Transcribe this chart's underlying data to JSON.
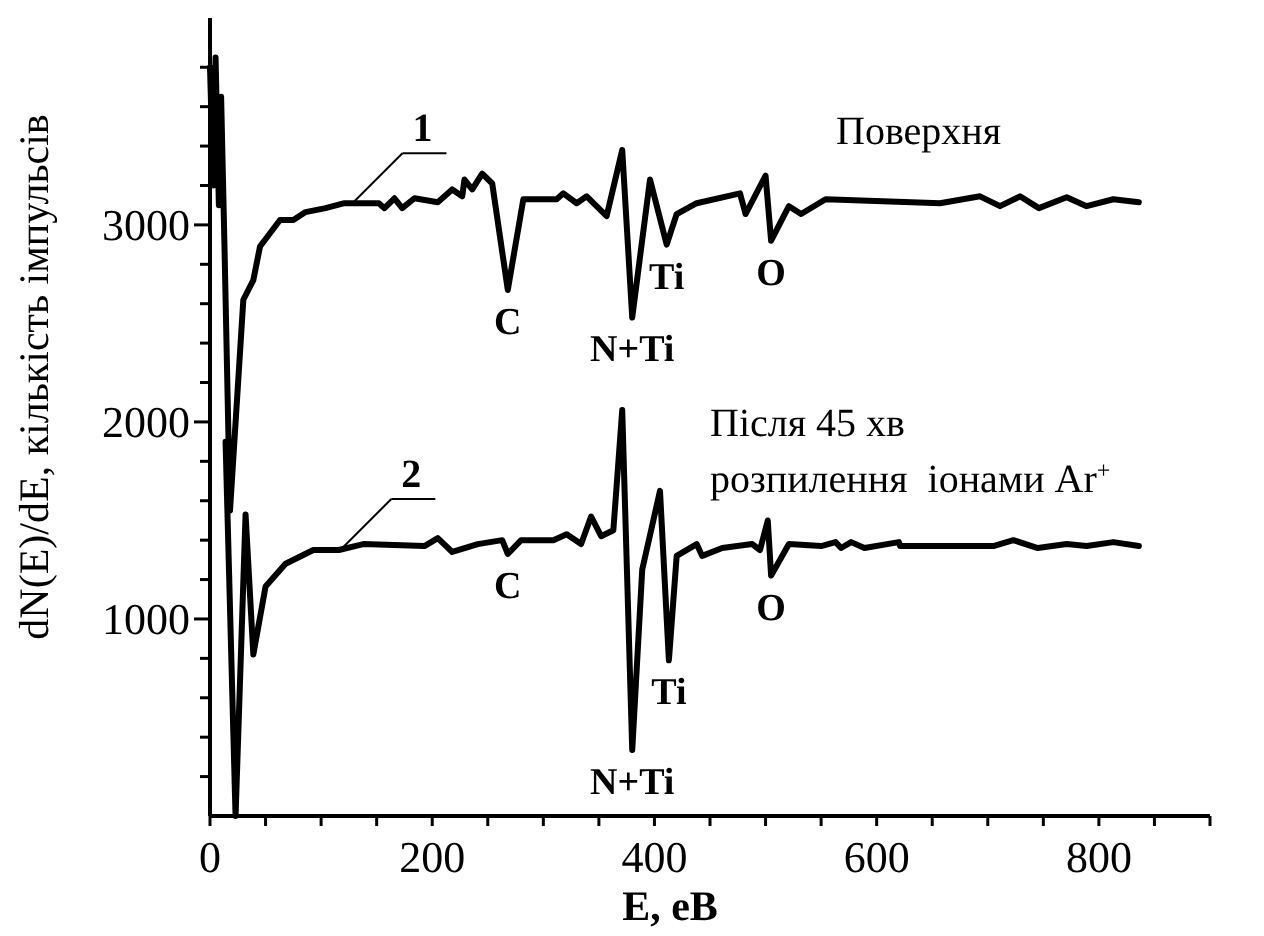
{
  "chart_data": {
    "type": "line",
    "xlabel": "E, еВ",
    "ylabel": "dN(E)/dE, кількість імпульсів",
    "xlim": [
      0,
      900
    ],
    "xticks": [
      0,
      {
        "value": 50,
        "label": null
      },
      {
        "value": 100,
        "label": null
      },
      {
        "value": 150,
        "label": null
      },
      200,
      {
        "value": 250,
        "label": null
      },
      {
        "value": 300,
        "label": null
      },
      {
        "value": 350,
        "label": null
      },
      400,
      {
        "value": 450,
        "label": null
      },
      {
        "value": 500,
        "label": null
      },
      {
        "value": 550,
        "label": null
      },
      600,
      {
        "value": 650,
        "label": null
      },
      {
        "value": 700,
        "label": null
      },
      {
        "value": 750,
        "label": null
      },
      800,
      {
        "value": 850,
        "label": null
      },
      {
        "value": 900,
        "label": null
      }
    ],
    "ylim": [
      0,
      4050
    ],
    "yticks": [
      {
        "value": 200,
        "label": null
      },
      {
        "value": 400,
        "label": null
      },
      {
        "value": 600,
        "label": null
      },
      {
        "value": 800,
        "label": null
      },
      1000,
      {
        "value": 1200,
        "label": null
      },
      {
        "value": 1400,
        "label": null
      },
      {
        "value": 1600,
        "label": null
      },
      {
        "value": 1800,
        "label": null
      },
      2000,
      {
        "value": 2200,
        "label": null
      },
      {
        "value": 2400,
        "label": null
      },
      {
        "value": 2600,
        "label": null
      },
      {
        "value": 2800,
        "label": null
      },
      3000,
      {
        "value": 3200,
        "label": null
      },
      {
        "value": 3400,
        "label": null
      },
      {
        "value": 3600,
        "label": null
      },
      {
        "value": 3800,
        "label": null
      }
    ],
    "grid": false,
    "marker": "none",
    "line_style": "solid",
    "series": [
      {
        "color": "#000000",
        "x": [
          0,
          3,
          5,
          8,
          10,
          13,
          18,
          30,
          39,
          45,
          63,
          75,
          86,
          104,
          121,
          152,
          157,
          166,
          173,
          184,
          205,
          218,
          227,
          229,
          236,
          245,
          254,
          268,
          282,
          312,
          318,
          330,
          339,
          357,
          371,
          380,
          396,
          411,
          420,
          438,
          477,
          482,
          500,
          505,
          521,
          532,
          554,
          657,
          693,
          711,
          729,
          746,
          771,
          789,
          813,
          836
        ],
        "values": [
          3800,
          3200,
          3850,
          3100,
          3650,
          2900,
          1550,
          2620,
          2720,
          2890,
          3025,
          3025,
          3065,
          3085,
          3110,
          3110,
          3085,
          3135,
          3085,
          3135,
          3115,
          3180,
          3145,
          3230,
          3180,
          3260,
          3210,
          2670,
          3130,
          3130,
          3160,
          3110,
          3145,
          3045,
          3380,
          2530,
          3230,
          2900,
          3055,
          3110,
          3160,
          3055,
          3250,
          2920,
          3095,
          3055,
          3130,
          3110,
          3145,
          3095,
          3145,
          3085,
          3140,
          3095,
          3130,
          3115
        ]
      },
      {
        "color": "#000000",
        "x": [
          14,
          23,
          32,
          39,
          50,
          68,
          93,
          116,
          138,
          193,
          205,
          218,
          241,
          263,
          268,
          280,
          309,
          321,
          334,
          343,
          352,
          363,
          371,
          380,
          389,
          405,
          413,
          420,
          438,
          443,
          461,
          488,
          495,
          502,
          505,
          521,
          550,
          563,
          568,
          577,
          589,
          620,
          621,
          705,
          723,
          745,
          771,
          789,
          813,
          836
        ],
        "values": [
          1900,
          0,
          1530,
          820,
          1165,
          1280,
          1350,
          1350,
          1380,
          1370,
          1410,
          1340,
          1380,
          1400,
          1330,
          1400,
          1400,
          1430,
          1380,
          1520,
          1420,
          1450,
          2060,
          335,
          1250,
          1650,
          790,
          1320,
          1380,
          1320,
          1360,
          1380,
          1350,
          1500,
          1220,
          1380,
          1370,
          1390,
          1360,
          1390,
          1360,
          1390,
          1370,
          1370,
          1400,
          1360,
          1380,
          1370,
          1390,
          1370
        ]
      }
    ],
    "annotations": [
      {
        "text": "1",
        "x": 130,
        "y": 3100
      },
      {
        "text": "2",
        "x": 120,
        "y": 1345
      },
      {
        "text": "C",
        "x": 268,
        "y": 2670
      },
      {
        "text": "N+Ti",
        "x": 380,
        "y": 2530
      },
      {
        "text": "Ti",
        "x": 411,
        "y": 2900
      },
      {
        "text": "O",
        "x": 505,
        "y": 2920
      },
      {
        "text": "C",
        "x": 268,
        "y": 1330
      },
      {
        "text": "N+Ti",
        "x": 380,
        "y": 335
      },
      {
        "text": "Ti",
        "x": 413,
        "y": 790
      },
      {
        "text": "O",
        "x": 505,
        "y": 1220
      },
      "Поверхня",
      "Після 45 хв",
      "розпилення  іонами Ar$^{+}$"
    ]
  }
}
